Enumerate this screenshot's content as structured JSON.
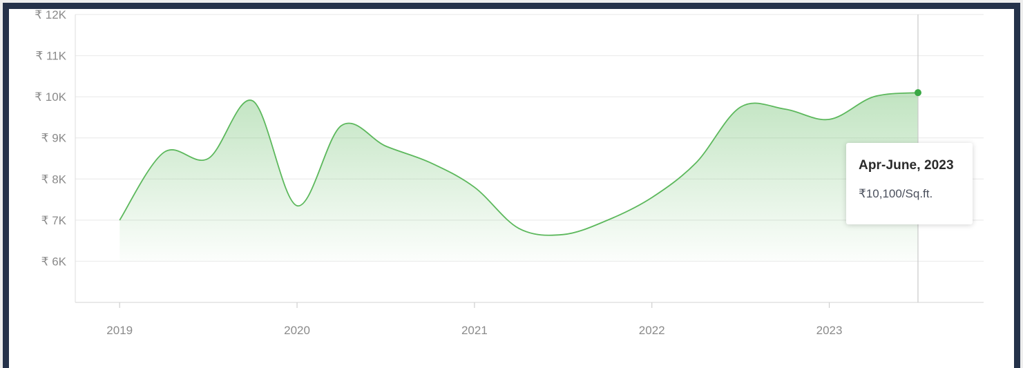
{
  "chart_data": {
    "type": "area",
    "currency_symbol": "₹",
    "y_ticks": [
      "₹ 12K",
      "₹ 11K",
      "₹ 10K",
      "₹ 9K",
      "₹ 8K",
      "₹ 7K",
      "₹ 6K"
    ],
    "x_ticks": [
      "2019",
      "2020",
      "2021",
      "2022",
      "2023"
    ],
    "ylim": [
      5000,
      12000
    ],
    "xlim": [
      2018.75,
      2023.87
    ],
    "grid": true,
    "series": [
      {
        "x": [
          2019.0,
          2019.25,
          2019.5,
          2019.75,
          2020.0,
          2020.25,
          2020.5,
          2020.75,
          2021.0,
          2021.25,
          2021.5,
          2021.75,
          2022.0,
          2022.25,
          2022.5,
          2022.75,
          2023.0,
          2023.25,
          2023.5
        ],
        "y": [
          7000,
          8650,
          8500,
          9900,
          7350,
          9300,
          8800,
          8400,
          7800,
          6800,
          6650,
          7000,
          7550,
          8400,
          9750,
          9700,
          9450,
          10000,
          10100
        ]
      }
    ],
    "line_color": "#5cb85c",
    "fill_color": "#5cb85c",
    "marker_color": "#3aa845",
    "highlight_index": 18
  },
  "tooltip": {
    "title": "Apr-June, 2023",
    "value": "₹10,100/Sq.ft."
  }
}
